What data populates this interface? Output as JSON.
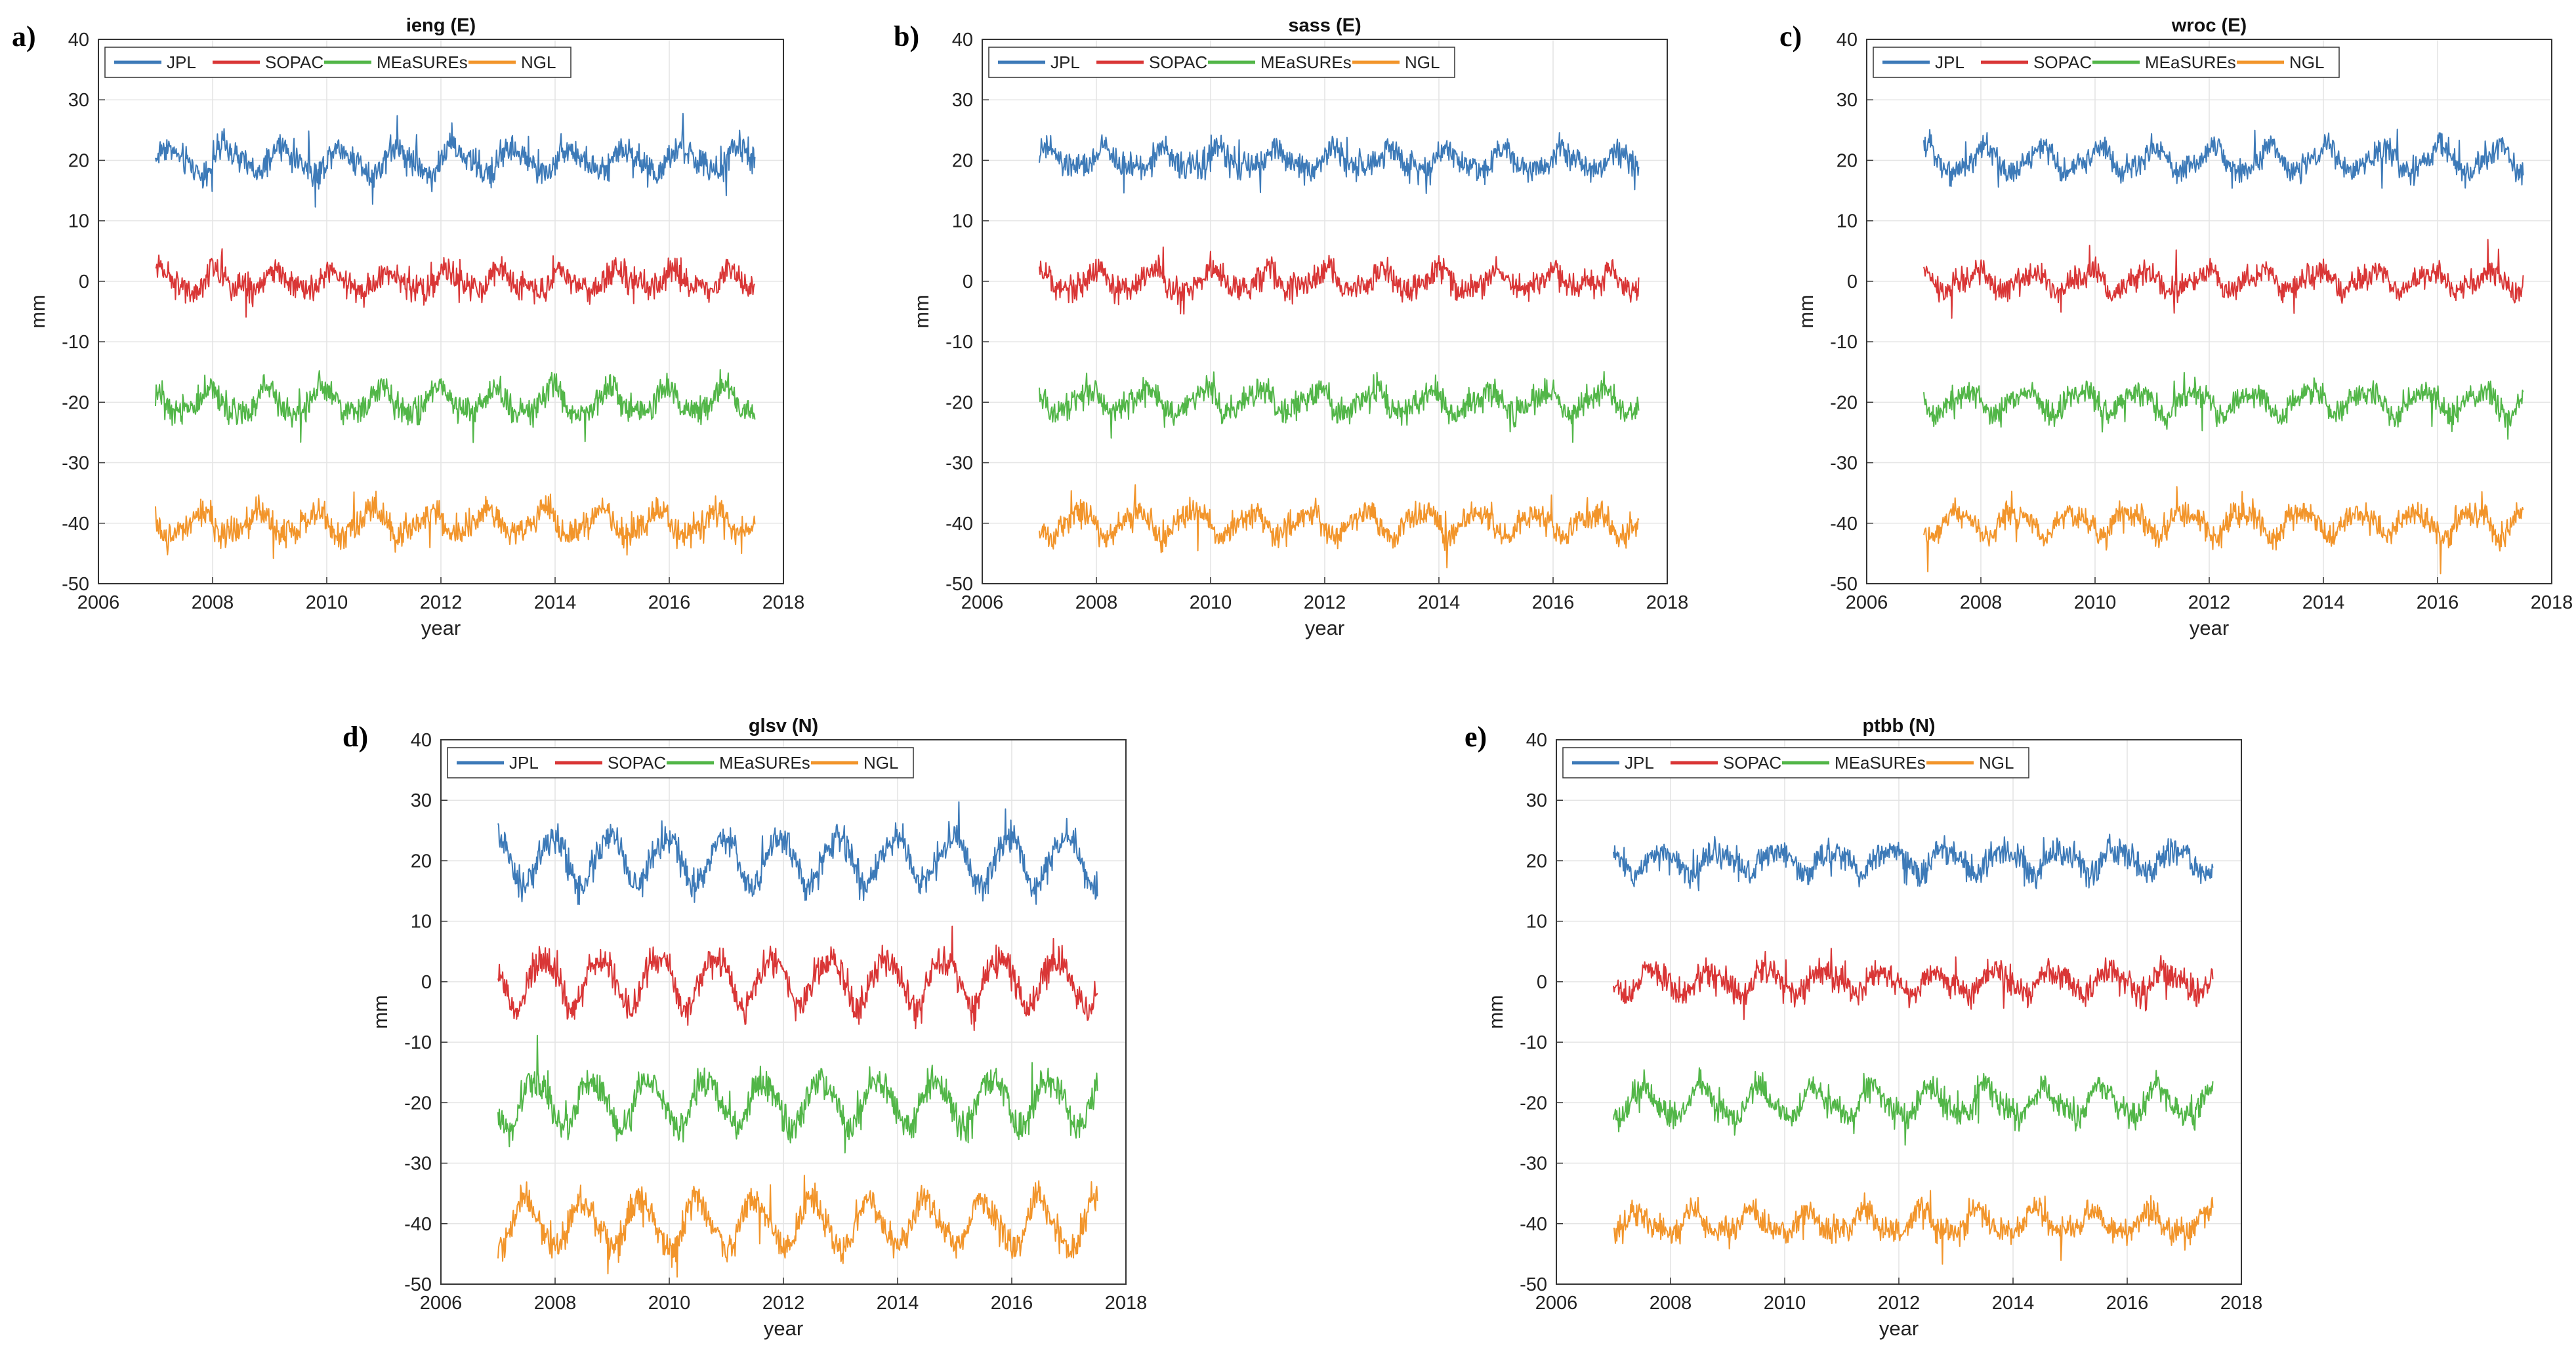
{
  "chart_data": [
    {
      "panel": "a)",
      "type": "line",
      "title": "ieng (E)",
      "xlabel": "year",
      "ylabel": "mm",
      "xlim": [
        2006,
        2018
      ],
      "ylim": [
        -50,
        40
      ],
      "xticks": [
        "2006",
        "2008",
        "2010",
        "2012",
        "2014",
        "2016",
        "2018"
      ],
      "yticks": [
        "-50",
        "-40",
        "-30",
        "-20",
        "-10",
        "0",
        "10",
        "20",
        "30",
        "40"
      ],
      "legend": [
        "JPL",
        "SOPAC",
        "MEaSUREs",
        "NGL"
      ],
      "x_start": 2007.0,
      "x_end": 2017.5,
      "series": [
        {
          "name": "JPL",
          "color": "#3d7ab8",
          "mean": 20,
          "amplitude": 2.0,
          "noise": 1.5
        },
        {
          "name": "SOPAC",
          "color": "#d93636",
          "mean": 0,
          "amplitude": 1.5,
          "noise": 1.5
        },
        {
          "name": "MEaSUREs",
          "color": "#52b648",
          "mean": -20,
          "amplitude": 2.0,
          "noise": 1.5
        },
        {
          "name": "NGL",
          "color": "#f2952b",
          "mean": -40,
          "amplitude": 2.0,
          "noise": 1.5
        }
      ]
    },
    {
      "panel": "b)",
      "type": "line",
      "title": "sass (E)",
      "xlabel": "year",
      "ylabel": "mm",
      "xlim": [
        2006,
        2018
      ],
      "ylim": [
        -50,
        40
      ],
      "xticks": [
        "2006",
        "2008",
        "2010",
        "2012",
        "2014",
        "2016",
        "2018"
      ],
      "yticks": [
        "-50",
        "-40",
        "-30",
        "-20",
        "-10",
        "0",
        "10",
        "20",
        "30",
        "40"
      ],
      "legend": [
        "JPL",
        "SOPAC",
        "MEaSUREs",
        "NGL"
      ],
      "x_start": 2007.0,
      "x_end": 2017.5,
      "series": [
        {
          "name": "JPL",
          "color": "#3d7ab8",
          "mean": 20,
          "amplitude": 1.5,
          "noise": 1.4
        },
        {
          "name": "SOPAC",
          "color": "#d93636",
          "mean": 0,
          "amplitude": 1.5,
          "noise": 1.4
        },
        {
          "name": "MEaSUREs",
          "color": "#52b648",
          "mean": -20,
          "amplitude": 1.8,
          "noise": 1.4
        },
        {
          "name": "NGL",
          "color": "#f2952b",
          "mean": -40,
          "amplitude": 1.8,
          "noise": 1.4
        }
      ]
    },
    {
      "panel": "c)",
      "type": "line",
      "title": "wroc (E)",
      "xlabel": "year",
      "ylabel": "mm",
      "xlim": [
        2006,
        2018
      ],
      "ylim": [
        -50,
        40
      ],
      "xticks": [
        "2006",
        "2008",
        "2010",
        "2012",
        "2014",
        "2016",
        "2018"
      ],
      "yticks": [
        "-50",
        "-40",
        "-30",
        "-20",
        "-10",
        "0",
        "10",
        "20",
        "30",
        "40"
      ],
      "legend": [
        "JPL",
        "SOPAC",
        "MEaSUREs",
        "NGL"
      ],
      "x_start": 2007.0,
      "x_end": 2017.5,
      "series": [
        {
          "name": "JPL",
          "color": "#3d7ab8",
          "mean": 20,
          "amplitude": 2.0,
          "noise": 1.3
        },
        {
          "name": "SOPAC",
          "color": "#d93636",
          "mean": 0,
          "amplitude": 1.5,
          "noise": 1.3
        },
        {
          "name": "MEaSUREs",
          "color": "#52b648",
          "mean": -20,
          "amplitude": 1.8,
          "noise": 1.3
        },
        {
          "name": "NGL",
          "color": "#f2952b",
          "mean": -40,
          "amplitude": 2.0,
          "noise": 1.3
        }
      ]
    },
    {
      "panel": "d)",
      "type": "line",
      "title": "glsv (N)",
      "xlabel": "year",
      "ylabel": "mm",
      "xlim": [
        2006,
        2018
      ],
      "ylim": [
        -50,
        40
      ],
      "xticks": [
        "2006",
        "2008",
        "2010",
        "2012",
        "2014",
        "2016",
        "2018"
      ],
      "yticks": [
        "-50",
        "-40",
        "-30",
        "-20",
        "-10",
        "0",
        "10",
        "20",
        "30",
        "40"
      ],
      "legend": [
        "JPL",
        "SOPAC",
        "MEaSUREs",
        "NGL"
      ],
      "x_start": 2007.0,
      "x_end": 2017.5,
      "series": [
        {
          "name": "JPL",
          "color": "#3d7ab8",
          "mean": 20,
          "amplitude": 4.0,
          "noise": 1.6
        },
        {
          "name": "SOPAC",
          "color": "#d93636",
          "mean": 0,
          "amplitude": 4.0,
          "noise": 1.6
        },
        {
          "name": "MEaSUREs",
          "color": "#52b648",
          "mean": -20,
          "amplitude": 4.0,
          "noise": 1.6
        },
        {
          "name": "NGL",
          "color": "#f2952b",
          "mean": -40,
          "amplitude": 4.0,
          "noise": 1.6
        }
      ]
    },
    {
      "panel": "e)",
      "type": "line",
      "title": "ptbb (N)",
      "xlabel": "year",
      "ylabel": "mm",
      "xlim": [
        2006,
        2018
      ],
      "ylim": [
        -50,
        40
      ],
      "xticks": [
        "2006",
        "2008",
        "2010",
        "2012",
        "2014",
        "2016",
        "2018"
      ],
      "yticks": [
        "-50",
        "-40",
        "-30",
        "-20",
        "-10",
        "0",
        "10",
        "20",
        "30",
        "40"
      ],
      "legend": [
        "JPL",
        "SOPAC",
        "MEaSUREs",
        "NGL"
      ],
      "x_start": 2007.0,
      "x_end": 2017.5,
      "series": [
        {
          "name": "JPL",
          "color": "#3d7ab8",
          "mean": 20,
          "amplitude": 1.8,
          "noise": 1.4
        },
        {
          "name": "SOPAC",
          "color": "#d93636",
          "mean": 0,
          "amplitude": 1.8,
          "noise": 1.4
        },
        {
          "name": "MEaSUREs",
          "color": "#52b648",
          "mean": -20,
          "amplitude": 2.5,
          "noise": 1.4
        },
        {
          "name": "NGL",
          "color": "#f2952b",
          "mean": -40,
          "amplitude": 1.8,
          "noise": 1.4
        }
      ]
    }
  ]
}
